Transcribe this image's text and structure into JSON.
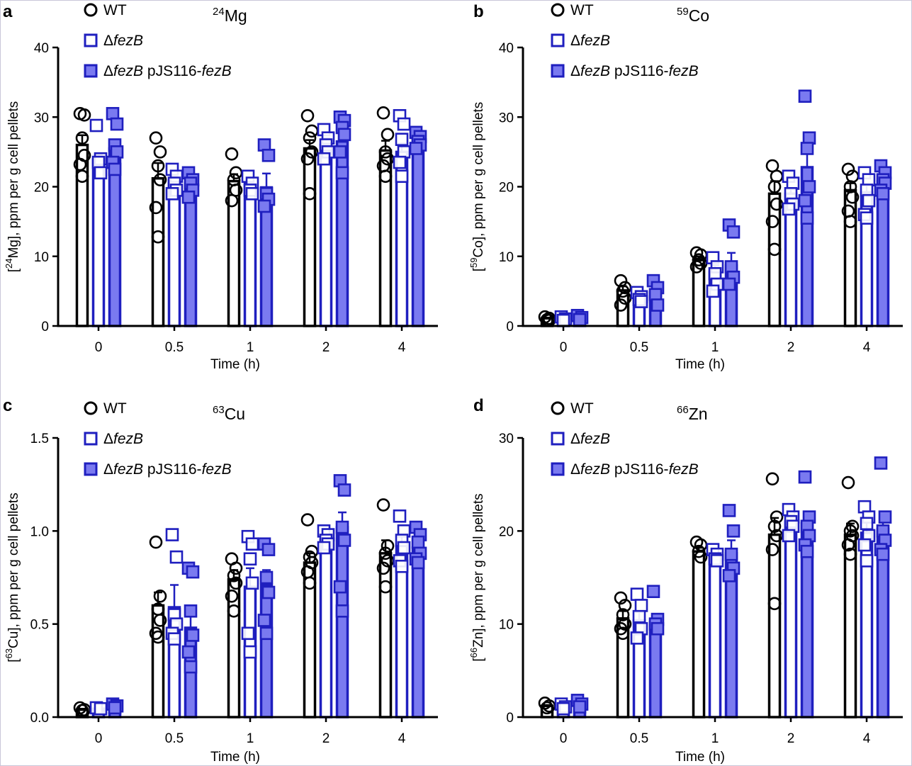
{
  "colors": {
    "wt": "#000000",
    "mutant": "#1f1fbf",
    "complement_edge": "#1f1fbf",
    "complement_fill": "#7a7af0"
  },
  "legend": {
    "wt_label": "WT",
    "mutant_label": "ΔfezB",
    "complement_label": "ΔfezB pJS116-fezB"
  },
  "chart_data": [
    {
      "type": "bar",
      "panel": "a",
      "title": "24Mg",
      "title_mass": "24",
      "title_element": "Mg",
      "xlabel": "Time (h)",
      "ylabel": "[24Mg], ppm per g cell pellets",
      "ylabel_mass": "24",
      "ylabel_element": "Mg",
      "ylabel_rest": "], ppm per g cell pellets",
      "categories": [
        "0",
        "0.5",
        "1",
        "2",
        "4"
      ],
      "ylim": [
        0,
        40
      ],
      "yticks": [
        0,
        10,
        20,
        30,
        40
      ],
      "ytick_labels": [
        "0",
        "10",
        "20",
        "30",
        "40"
      ],
      "series": [
        {
          "name": "WT",
          "values": [
            26.0,
            21.2,
            20.8,
            25.5,
            25.2
          ],
          "errors": [
            1.4,
            2.2,
            1.0,
            1.2,
            1.4
          ],
          "points": [
            [
              30.5,
              30.3,
              27.0,
              24.5,
              23.2,
              21.5
            ],
            [
              27.0,
              25.0,
              23.0,
              21.0,
              17.0,
              12.8
            ],
            [
              24.7,
              22.0,
              21.0,
              19.5,
              18.0
            ],
            [
              30.2,
              28.0,
              27.0,
              25.0,
              24.0,
              19.0
            ],
            [
              30.6,
              27.5,
              25.0,
              24.0,
              23.0,
              21.5
            ]
          ]
        },
        {
          "name": "ΔfezB",
          "values": [
            23.8,
            20.8,
            20.4,
            26.0,
            25.0
          ],
          "errors": [
            0.8,
            0.6,
            0.8,
            1.0,
            1.2
          ],
          "points": [
            [
              28.8,
              24.0,
              23.5,
              22.0
            ],
            [
              22.5,
              21.5,
              20.5,
              19.5,
              19.0
            ],
            [
              21.5,
              20.5,
              19.5,
              19.0
            ],
            [
              28.2,
              27.0,
              26.0,
              25.0,
              24.0
            ],
            [
              30.2,
              29.0,
              26.8,
              25.0,
              23.5,
              21.5
            ]
          ]
        },
        {
          "name": "ΔfezB pJS116-fezB",
          "values": [
            25.5,
            20.5,
            19.9,
            26.5,
            26.8
          ],
          "errors": [
            1.2,
            0.6,
            2.0,
            1.4,
            0.6
          ],
          "points": [
            [
              30.5,
              29.0,
              26.0,
              25.0,
              23.5,
              22.5
            ],
            [
              22.0,
              21.0,
              20.5,
              19.5,
              18.5
            ],
            [
              26.0,
              24.5,
              19.0,
              18.2,
              17.2
            ],
            [
              30.0,
              29.5,
              28.5,
              27.5,
              25.0,
              22.0
            ],
            [
              27.8,
              27.2,
              26.5,
              26.0,
              25.5
            ]
          ]
        }
      ]
    },
    {
      "type": "bar",
      "panel": "b",
      "title": "59Co",
      "title_mass": "59",
      "title_element": "Co",
      "xlabel": "Time (h)",
      "ylabel": "[59Co], ppm per g cell pellets",
      "ylabel_mass": "59",
      "ylabel_element": "Co",
      "ylabel_rest": "], ppm per g cell pellets",
      "categories": [
        "0",
        "0.5",
        "1",
        "2",
        "4"
      ],
      "ylim": [
        0,
        40
      ],
      "yticks": [
        0,
        10,
        20,
        30,
        40
      ],
      "ytick_labels": [
        "0",
        "10",
        "20",
        "30",
        "40"
      ],
      "series": [
        {
          "name": "WT",
          "values": [
            1.1,
            5.1,
            9.5,
            19.0,
            19.5
          ],
          "errors": [
            0.1,
            0.6,
            0.5,
            1.8,
            1.0
          ],
          "points": [
            [
              1.3,
              1.1,
              0.9,
              0.8
            ],
            [
              6.5,
              5.5,
              5.0,
              4.0,
              3.0
            ],
            [
              10.5,
              10.2,
              9.5,
              9.0,
              8.5
            ],
            [
              23.0,
              21.5,
              20.0,
              17.5,
              15.0,
              11.0
            ],
            [
              22.5,
              21.5,
              20.0,
              18.5,
              16.5,
              15.0
            ]
          ]
        },
        {
          "name": "ΔfezB",
          "values": [
            1.0,
            4.0,
            7.8,
            19.0,
            19.2
          ],
          "errors": [
            0.1,
            0.4,
            0.9,
            0.8,
            1.0
          ],
          "points": [
            [
              1.3,
              1.0,
              0.8
            ],
            [
              4.8,
              4.2,
              3.8,
              3.5
            ],
            [
              9.8,
              8.5,
              7.5,
              6.0,
              5.0
            ],
            [
              21.5,
              20.5,
              19.0,
              17.5,
              16.8
            ],
            [
              22.0,
              21.0,
              19.5,
              18.0,
              16.0,
              15.5
            ]
          ]
        },
        {
          "name": "ΔfezB pJS116-fezB",
          "values": [
            1.2,
            4.8,
            8.7,
            22.8,
            20.8
          ],
          "errors": [
            0.1,
            0.6,
            1.8,
            3.0,
            0.8
          ],
          "points": [
            [
              1.5,
              1.2,
              0.9
            ],
            [
              6.5,
              5.5,
              4.5,
              3.0
            ],
            [
              14.5,
              13.5,
              8.5,
              7.0,
              6.0
            ],
            [
              33.0,
              27.0,
              25.5,
              20.0,
              18.0,
              15.5
            ],
            [
              23.0,
              22.0,
              21.0,
              20.5,
              19.5,
              19.0
            ]
          ]
        }
      ]
    },
    {
      "type": "bar",
      "panel": "c",
      "title": "63Cu",
      "title_mass": "63",
      "title_element": "Cu",
      "xlabel": "Time (h)",
      "ylabel": "[63Cu], ppm per g cell pellets",
      "ylabel_mass": "63",
      "ylabel_element": "Cu",
      "ylabel_rest": "], ppm per g cell pellets",
      "categories": [
        "0",
        "0.5",
        "1",
        "2",
        "4"
      ],
      "ylim": [
        0,
        1.5
      ],
      "yticks": [
        0,
        0.5,
        1.0,
        1.5
      ],
      "ytick_labels": [
        "0.0",
        "0.5",
        "1.0",
        "1.5"
      ],
      "series": [
        {
          "name": "WT",
          "values": [
            0.04,
            0.6,
            0.74,
            0.83,
            0.88
          ],
          "errors": [
            0.005,
            0.07,
            0.05,
            0.05,
            0.07
          ],
          "points": [
            [
              0.05,
              0.04,
              0.035
            ],
            [
              0.94,
              0.65,
              0.58,
              0.52,
              0.45,
              0.43
            ],
            [
              0.85,
              0.8,
              0.76,
              0.72,
              0.65,
              0.57
            ],
            [
              1.06,
              0.89,
              0.86,
              0.83,
              0.78,
              0.72
            ],
            [
              1.14,
              0.92,
              0.88,
              0.84,
              0.8,
              0.7
            ]
          ]
        },
        {
          "name": "ΔfezB",
          "values": [
            0.045,
            0.59,
            0.7,
            0.95,
            0.92
          ],
          "errors": [
            0.005,
            0.12,
            0.1,
            0.05,
            0.05
          ],
          "points": [
            [
              0.05,
              0.045
            ],
            [
              0.98,
              0.86,
              0.55,
              0.5,
              0.45,
              0.42
            ],
            [
              0.97,
              0.93,
              0.85,
              0.72,
              0.45,
              0.35
            ],
            [
              1.0,
              0.98,
              0.95,
              0.93,
              0.91
            ],
            [
              1.08,
              1.0,
              0.95,
              0.91,
              0.84,
              0.81
            ]
          ]
        },
        {
          "name": "ΔfezB pJS116-fezB",
          "values": [
            0.055,
            0.48,
            0.71,
            1.02,
            0.91
          ],
          "errors": [
            0.005,
            0.1,
            0.08,
            0.08,
            0.04
          ],
          "points": [
            [
              0.07,
              0.06,
              0.05
            ],
            [
              0.8,
              0.78,
              0.57,
              0.44,
              0.35,
              0.27
            ],
            [
              0.93,
              0.9,
              0.75,
              0.67,
              0.52,
              0.45
            ],
            [
              1.27,
              1.22,
              1.02,
              0.95,
              0.7,
              0.57
            ],
            [
              1.02,
              0.98,
              0.94,
              0.88,
              0.85,
              0.83
            ]
          ]
        }
      ]
    },
    {
      "type": "bar",
      "panel": "d",
      "title": "66Zn",
      "title_mass": "66",
      "title_element": "Zn",
      "xlabel": "Time (h)",
      "ylabel": "[66Zn], ppm per g cell pellets",
      "ylabel_mass": "66",
      "ylabel_element": "Zn",
      "ylabel_rest": "], ppm per g cell pellets",
      "categories": [
        "0",
        "0.5",
        "1",
        "2",
        "4"
      ],
      "ylim": [
        0,
        30
      ],
      "yticks": [
        0,
        10,
        20,
        30
      ],
      "ytick_labels": [
        "0",
        "10",
        "20",
        "30"
      ],
      "series": [
        {
          "name": "WT",
          "values": [
            1.2,
            10.6,
            17.8,
            19.6,
            19.6
          ],
          "errors": [
            0.1,
            0.8,
            0.4,
            1.8,
            1.2
          ],
          "points": [
            [
              1.5,
              1.2,
              1.0
            ],
            [
              12.8,
              12.0,
              11.0,
              10.0,
              9.5,
              9.0
            ],
            [
              18.8,
              18.5,
              17.8,
              17.2
            ],
            [
              25.6,
              21.5,
              20.5,
              19.5,
              18.0,
              12.2
            ],
            [
              25.2,
              20.5,
              20.0,
              19.5,
              18.5,
              17.5
            ]
          ]
        },
        {
          "name": "ΔfezB",
          "values": [
            1.1,
            10.4,
            17.5,
            21.0,
            19.8
          ],
          "errors": [
            0.1,
            0.9,
            0.6,
            0.6,
            1.2
          ],
          "points": [
            [
              1.4,
              1.1,
              0.9
            ],
            [
              13.2,
              12.0,
              10.8,
              9.5,
              8.5
            ],
            [
              18.0,
              17.5,
              17.0,
              16.8
            ],
            [
              22.3,
              21.5,
              21.0,
              20.5,
              19.5
            ],
            [
              22.6,
              21.5,
              20.8,
              19.5,
              18.5,
              16.8
            ]
          ]
        },
        {
          "name": "ΔfezB pJS116-fezB",
          "values": [
            1.4,
            10.2,
            17.6,
            20.8,
            20.2
          ],
          "errors": [
            0.1,
            0.6,
            1.4,
            1.0,
            1.4
          ],
          "points": [
            [
              1.8,
              1.4,
              1.1
            ],
            [
              13.5,
              10.5,
              10.0,
              9.5
            ],
            [
              22.2,
              20.0,
              17.5,
              16.0,
              15.2
            ],
            [
              25.8,
              21.5,
              20.5,
              19.5,
              18.5,
              17.8
            ],
            [
              27.3,
              21.5,
              20.0,
              19.0,
              18.0,
              17.5
            ]
          ]
        }
      ]
    }
  ]
}
